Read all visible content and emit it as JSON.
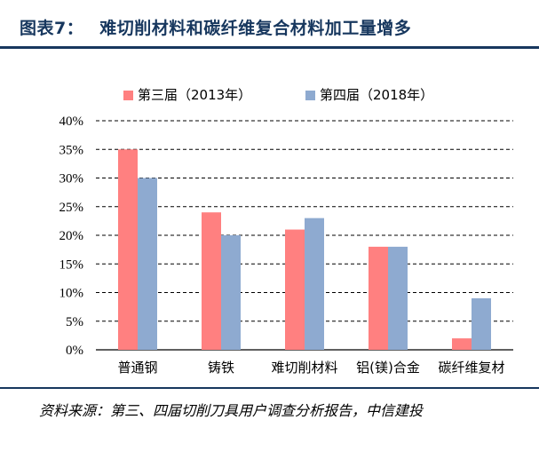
{
  "header": {
    "figure_label": "图表7：",
    "title": "难切削材料和碳纤维复合材料加工量增多"
  },
  "footer": {
    "source": "资料来源：第三、四届切削刀具用户调查分析报告，中信建投"
  },
  "chart_data": {
    "type": "bar",
    "title": "",
    "xlabel": "",
    "ylabel": "",
    "categories": [
      "普通钢",
      "铸铁",
      "难切削材料",
      "铝(镁)合金",
      "碳纤维复材"
    ],
    "series": [
      {
        "name": "第三届（2013年）",
        "color": "#ff8080",
        "values": [
          35,
          24,
          21,
          18,
          2
        ]
      },
      {
        "name": "第四届（2018年）",
        "color": "#8eaad0",
        "values": [
          30,
          20,
          23,
          18,
          9
        ]
      }
    ],
    "ylim": [
      0,
      40
    ],
    "yticks": [
      "0%",
      "5%",
      "10%",
      "15%",
      "20%",
      "25%",
      "30%",
      "35%",
      "40%"
    ],
    "grid": "dashed horizontal",
    "legend_position": "top-center"
  }
}
